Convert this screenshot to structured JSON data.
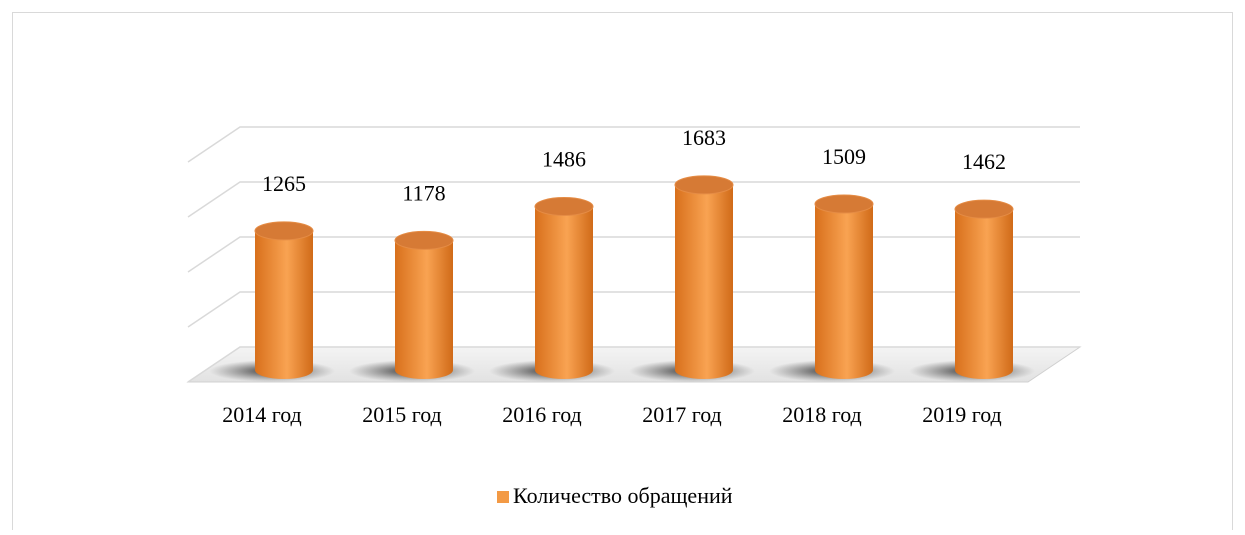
{
  "chart_data": {
    "type": "bar3d",
    "categories": [
      "2014 год",
      "2015 год",
      "2016 год",
      "2017 год",
      "2018 год",
      "2019 год"
    ],
    "series": [
      {
        "name": "Количество обращений",
        "color": "#f39a45",
        "values": [
          1265,
          1178,
          1486,
          1683,
          1509,
          1462
        ]
      }
    ],
    "ylim": [
      0,
      2000
    ],
    "yticks": [
      0,
      500,
      1000,
      1500,
      2000
    ],
    "grid": true,
    "legend": "bottom"
  }
}
